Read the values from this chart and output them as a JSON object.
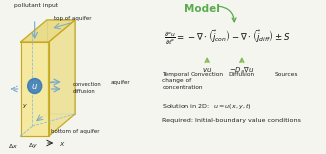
{
  "bg_color": "#f5f5ef",
  "title": "Model",
  "title_color": "#5aaa50",
  "box_fill": "#f5e898",
  "box_edge": "#c8a820",
  "box_right_fill": "#ede090",
  "box_top_fill": "#e8d878",
  "wire_color": "#88bbdd",
  "dash_color": "#88bbdd",
  "circle_color": "#3377bb",
  "text_color": "#222222",
  "arrow_blue": "#77aacc",
  "arrow_green": "#88bb55",
  "eq_color": "#111111",
  "label_pollutant": "pollutant input",
  "label_top": "top of aquifer",
  "label_bottom": "bottom of aquifer",
  "label_aquifer": "aquifer",
  "label_convdiff": "convection\ndiffusion",
  "label_ax": "$\\Delta x$",
  "label_ay": "$\\Delta y$",
  "label_x": "$X$",
  "label_vu": "$vu$",
  "label_Dvu": "$-D_a\\nabla u$",
  "label_temporal": "Temporal\nchange of\nconcentration",
  "label_convection": "Convection",
  "label_diffusion": "Diffusion",
  "label_sources": "Sources",
  "label_solution": "Solution in 2D:  $u = u(x, y, t)$",
  "label_required": "Required: Initial-boundary value conditions",
  "equation": "$\\frac{\\partial^{\\alpha}u}{\\partial t^{\\alpha}} = -\\nabla\\cdot\\left(\\vec{j}_{con}\\right) - \\nabla\\cdot\\left(\\vec{j}_{diff}\\right) \\pm S$"
}
